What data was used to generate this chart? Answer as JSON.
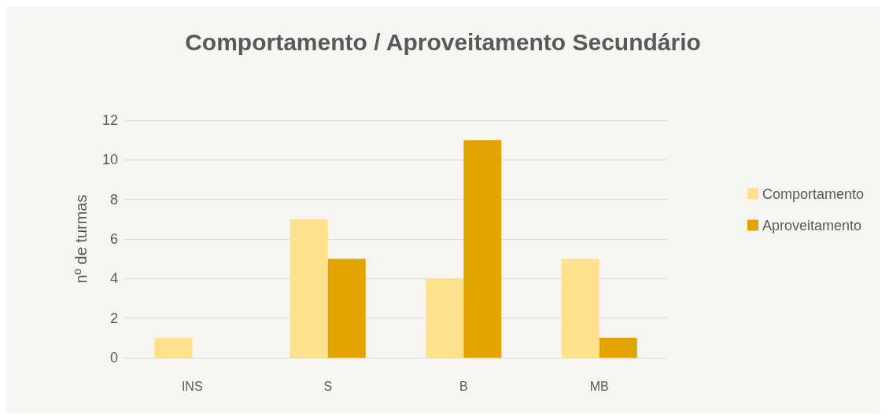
{
  "chart_data": {
    "type": "bar",
    "title": "Comportamento / Aproveitamento Secundário",
    "ylabel": "nº de turmas",
    "categories": [
      "INS",
      "S",
      "B",
      "MB"
    ],
    "series": [
      {
        "name": "Comportamento",
        "color": "#ffe08c",
        "values": [
          1,
          7,
          4,
          5
        ]
      },
      {
        "name": "Aproveitamento",
        "color": "#e2a500",
        "values": [
          0,
          5,
          11,
          1
        ]
      }
    ],
    "ylim": [
      0,
      12
    ],
    "yticks": [
      0,
      2,
      4,
      6,
      8,
      10,
      12
    ],
    "grid": "y",
    "legend": "right"
  }
}
